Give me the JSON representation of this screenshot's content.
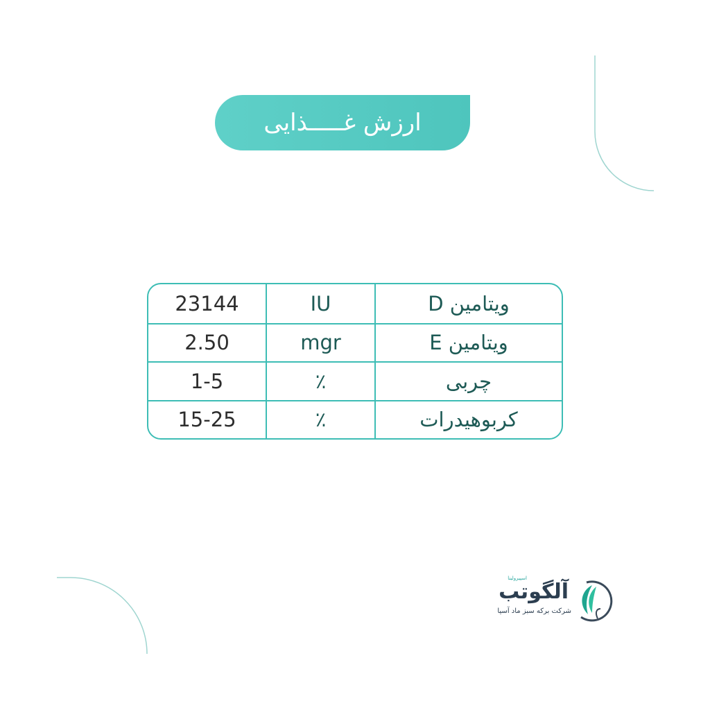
{
  "header": {
    "title": "ارزش غـــــذایی"
  },
  "table": {
    "rows": [
      {
        "name": "ویتامین D",
        "unit": "IU",
        "value": "23144"
      },
      {
        "name": "ویتامین E",
        "unit": "mgr",
        "value": "2.50"
      },
      {
        "name": "چربی",
        "unit": "٪",
        "value": "1-5"
      },
      {
        "name": "کربوهیدرات",
        "unit": "٪",
        "value": "15-25"
      }
    ]
  },
  "logo": {
    "name": "آلگوتب",
    "tagline": "اسپیرولینا",
    "company": "شرکت برکه سبز ماد آسیا"
  },
  "colors": {
    "accent": "#4ec5bd",
    "border": "#3dbdb5",
    "text": "#1d5a55"
  }
}
